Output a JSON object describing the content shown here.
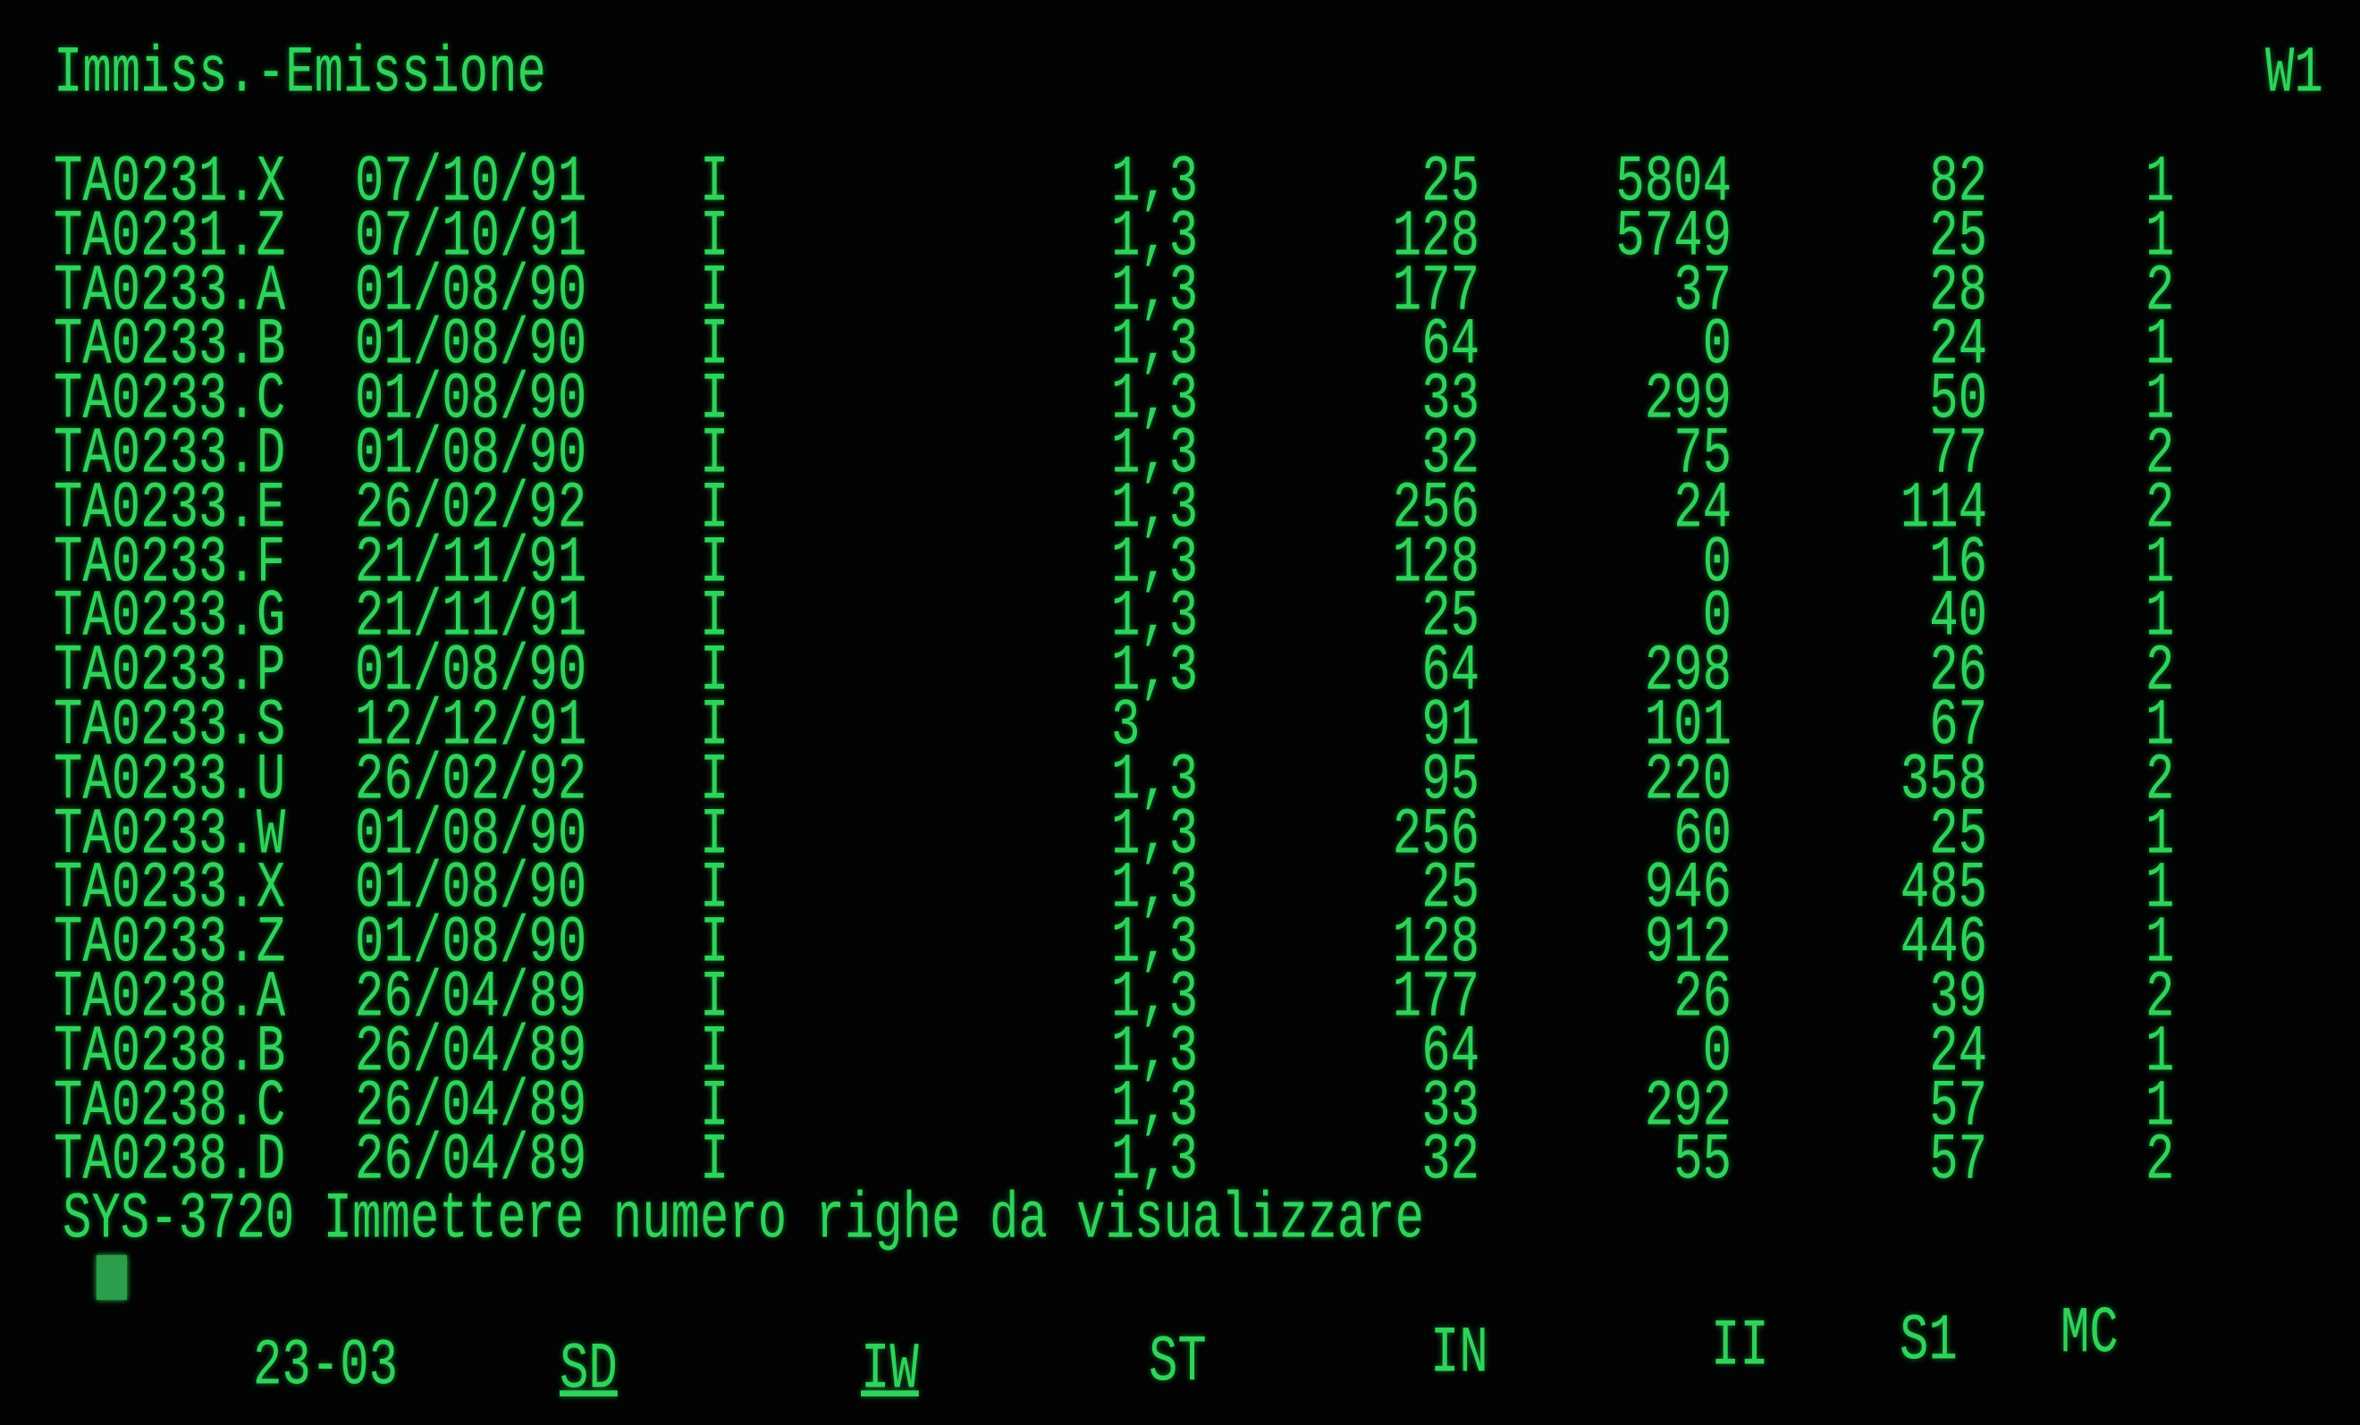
{
  "header": {
    "title": "Immiss.-Emissione",
    "screen_id": "W1"
  },
  "rows": [
    {
      "name": "TA0231.X",
      "date": "07/10/91",
      "flag": "I",
      "st": "1,3",
      "in": "25",
      "ii": "5804",
      "s1": "82",
      "mc": "1"
    },
    {
      "name": "TA0231.Z",
      "date": "07/10/91",
      "flag": "I",
      "st": "1,3",
      "in": "128",
      "ii": "5749",
      "s1": "25",
      "mc": "1"
    },
    {
      "name": "TA0233.A",
      "date": "01/08/90",
      "flag": "I",
      "st": "1,3",
      "in": "177",
      "ii": "37",
      "s1": "28",
      "mc": "2"
    },
    {
      "name": "TA0233.B",
      "date": "01/08/90",
      "flag": "I",
      "st": "1,3",
      "in": "64",
      "ii": "0",
      "s1": "24",
      "mc": "1"
    },
    {
      "name": "TA0233.C",
      "date": "01/08/90",
      "flag": "I",
      "st": "1,3",
      "in": "33",
      "ii": "299",
      "s1": "50",
      "mc": "1"
    },
    {
      "name": "TA0233.D",
      "date": "01/08/90",
      "flag": "I",
      "st": "1,3",
      "in": "32",
      "ii": "75",
      "s1": "77",
      "mc": "2"
    },
    {
      "name": "TA0233.E",
      "date": "26/02/92",
      "flag": "I",
      "st": "1,3",
      "in": "256",
      "ii": "24",
      "s1": "114",
      "mc": "2"
    },
    {
      "name": "TA0233.F",
      "date": "21/11/91",
      "flag": "I",
      "st": "1,3",
      "in": "128",
      "ii": "0",
      "s1": "16",
      "mc": "1"
    },
    {
      "name": "TA0233.G",
      "date": "21/11/91",
      "flag": "I",
      "st": "1,3",
      "in": "25",
      "ii": "0",
      "s1": "40",
      "mc": "1"
    },
    {
      "name": "TA0233.P",
      "date": "01/08/90",
      "flag": "I",
      "st": "1,3",
      "in": "64",
      "ii": "298",
      "s1": "26",
      "mc": "2"
    },
    {
      "name": "TA0233.S",
      "date": "12/12/91",
      "flag": "I",
      "st": "3",
      "in": "91",
      "ii": "101",
      "s1": "67",
      "mc": "1"
    },
    {
      "name": "TA0233.U",
      "date": "26/02/92",
      "flag": "I",
      "st": "1,3",
      "in": "95",
      "ii": "220",
      "s1": "358",
      "mc": "2"
    },
    {
      "name": "TA0233.W",
      "date": "01/08/90",
      "flag": "I",
      "st": "1,3",
      "in": "256",
      "ii": "60",
      "s1": "25",
      "mc": "1"
    },
    {
      "name": "TA0233.X",
      "date": "01/08/90",
      "flag": "I",
      "st": "1,3",
      "in": "25",
      "ii": "946",
      "s1": "485",
      "mc": "1"
    },
    {
      "name": "TA0233.Z",
      "date": "01/08/90",
      "flag": "I",
      "st": "1,3",
      "in": "128",
      "ii": "912",
      "s1": "446",
      "mc": "1"
    },
    {
      "name": "TA0238.A",
      "date": "26/04/89",
      "flag": "I",
      "st": "1,3",
      "in": "177",
      "ii": "26",
      "s1": "39",
      "mc": "2"
    },
    {
      "name": "TA0238.B",
      "date": "26/04/89",
      "flag": "I",
      "st": "1,3",
      "in": "64",
      "ii": "0",
      "s1": "24",
      "mc": "1"
    },
    {
      "name": "TA0238.C",
      "date": "26/04/89",
      "flag": "I",
      "st": "1,3",
      "in": "33",
      "ii": "292",
      "s1": "57",
      "mc": "1"
    },
    {
      "name": "TA0238.D",
      "date": "26/04/89",
      "flag": "I",
      "st": "1,3",
      "in": "32",
      "ii": "55",
      "s1": "57",
      "mc": "2"
    }
  ],
  "message": "SYS-3720 Immettere numero righe da visualizzare",
  "footer": {
    "date": "23-03",
    "k1": "SD",
    "k2": "IW",
    "st": "ST",
    "in": "IN",
    "ii": "II",
    "s1": "S1",
    "mc": "MC"
  },
  "colors": {
    "phosphor": "#2fd35a",
    "background": "#020302"
  }
}
